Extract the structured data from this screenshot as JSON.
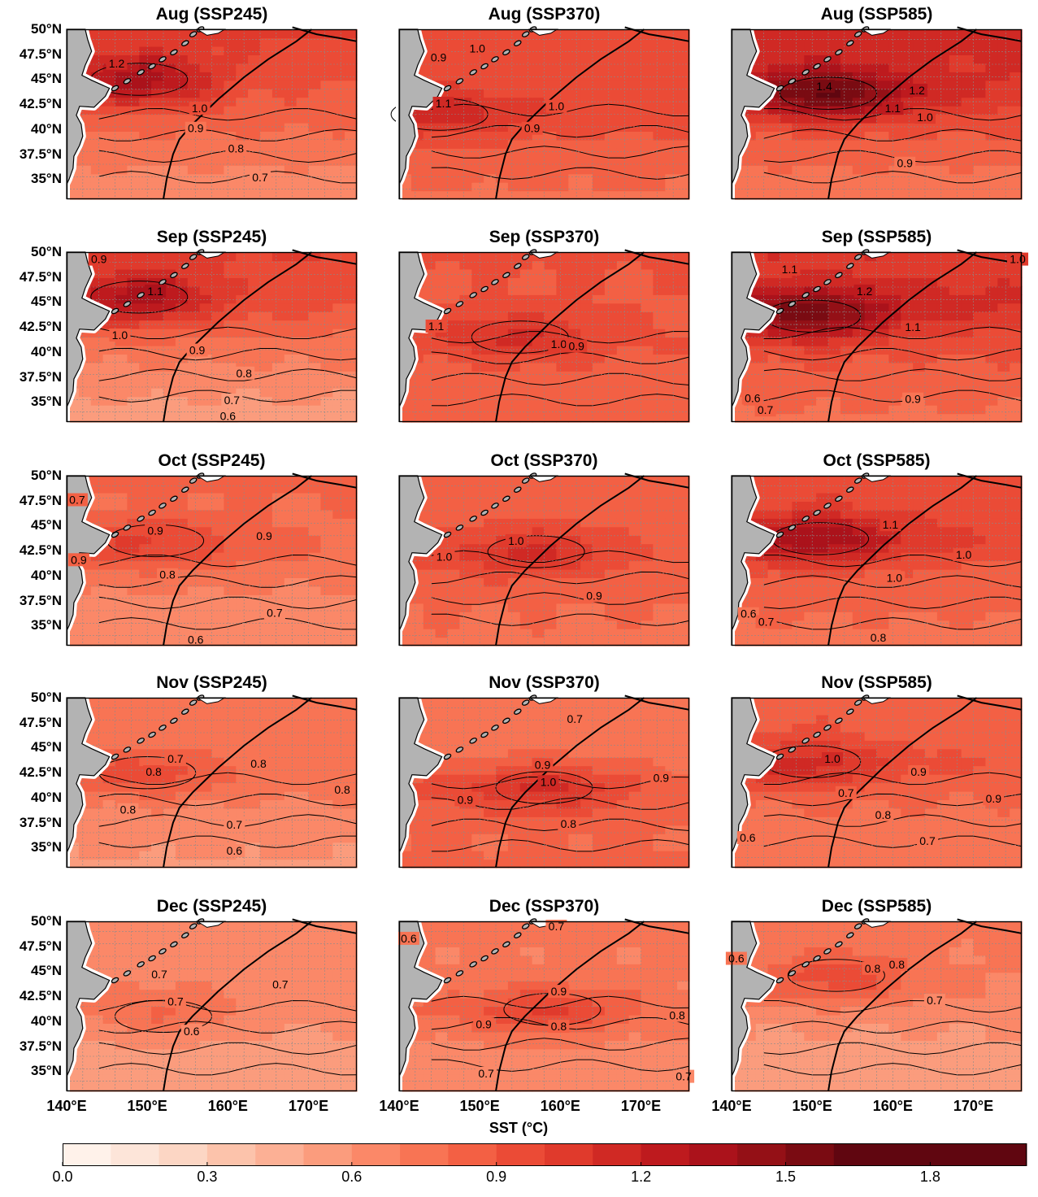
{
  "chart_data": {
    "type": "contour-map",
    "variable": "SST (°C)",
    "scenarios": [
      "SSP245",
      "SSP370",
      "SSP585"
    ],
    "months": [
      "Aug",
      "Sep",
      "Oct",
      "Nov",
      "Dec"
    ],
    "panel_titles": [
      [
        "Aug (SSP245)",
        "Aug (SSP370)",
        "Aug (SSP585)"
      ],
      [
        "Sep (SSP245)",
        "Sep (SSP370)",
        "Sep (SSP585)"
      ],
      [
        "Oct (SSP245)",
        "Oct (SSP370)",
        "Oct (SSP585)"
      ],
      [
        "Nov (SSP245)",
        "Nov (SSP370)",
        "Nov (SSP585)"
      ],
      [
        "Dec (SSP245)",
        "Dec (SSP370)",
        "Dec (SSP585)"
      ]
    ],
    "lon_range": [
      140,
      176
    ],
    "lat_range": [
      33,
      50
    ],
    "lat_ticks": [
      {
        "value": 50,
        "label": "50°N"
      },
      {
        "value": 47.5,
        "label": "47.5°N"
      },
      {
        "value": 45,
        "label": "45°N"
      },
      {
        "value": 42.5,
        "label": "42.5°N"
      },
      {
        "value": 40,
        "label": "40°N"
      },
      {
        "value": 37.5,
        "label": "37.5°N"
      },
      {
        "value": 35,
        "label": "35°N"
      }
    ],
    "lon_ticks": [
      {
        "value": 140,
        "label": "140°E"
      },
      {
        "value": 150,
        "label": "150°E"
      },
      {
        "value": 160,
        "label": "160°E"
      },
      {
        "value": 170,
        "label": "170°E"
      }
    ],
    "grid": true,
    "colorbar": {
      "label": "SST (°C)",
      "min": 0.0,
      "max": 2.0,
      "step": 0.1,
      "ticks": [
        {
          "value": 0.0,
          "label": "0.0"
        },
        {
          "value": 0.3,
          "label": "0.3"
        },
        {
          "value": 0.6,
          "label": "0.6"
        },
        {
          "value": 0.9,
          "label": "0.9"
        },
        {
          "value": 1.2,
          "label": "1.2"
        },
        {
          "value": 1.5,
          "label": "1.5"
        },
        {
          "value": 1.8,
          "label": "1.8"
        }
      ],
      "colors": [
        "#fff2ea",
        "#fde5d9",
        "#fcd6c4",
        "#fcc3ab",
        "#fcb095",
        "#fb9c7d",
        "#fb8868",
        "#f87454",
        "#f36044",
        "#eb4b36",
        "#e03a2c",
        "#d02924",
        "#be1a1e",
        "#ab121b",
        "#941016",
        "#7a0b12",
        "#600610"
      ]
    },
    "panels": [
      {
        "month": "Aug",
        "scenario": "SSP245",
        "field": {
          "base": 0.8,
          "north": 0.25,
          "core_value": 1.25,
          "core_lon": 149,
          "core_lat": 45,
          "tongue": 0.05,
          "tongue_lat": 42
        },
        "contour_labels": [
          {
            "text": "1.2",
            "lon": 146.2,
            "lat": 46.6
          },
          {
            "text": "1.0",
            "lon": 156.5,
            "lat": 42.1
          },
          {
            "text": "0.9",
            "lon": 156,
            "lat": 40.1
          },
          {
            "text": "0.8",
            "lon": 161,
            "lat": 38.1
          },
          {
            "text": "0.7",
            "lon": 164,
            "lat": 35.2
          }
        ]
      },
      {
        "month": "Aug",
        "scenario": "SSP370",
        "field": {
          "base": 0.88,
          "north": 0.12,
          "core_value": 1.05,
          "core_lon": 145,
          "core_lat": 41.5,
          "tongue": 0.12,
          "tongue_lat": 41.5
        },
        "contour_labels": [
          {
            "text": "0.9",
            "lon": 144.9,
            "lat": 47.2
          },
          {
            "text": "1.0",
            "lon": 149.7,
            "lat": 48.1
          },
          {
            "text": "1.0",
            "lon": 159.5,
            "lat": 42.3
          },
          {
            "text": "0.9",
            "lon": 156.5,
            "lat": 40.1
          },
          {
            "text": "1.1",
            "lon": 145.5,
            "lat": 42.6
          }
        ]
      },
      {
        "month": "Aug",
        "scenario": "SSP585",
        "field": {
          "base": 0.92,
          "north": 0.3,
          "core_value": 1.42,
          "core_lon": 152,
          "core_lat": 43.6,
          "tongue": 0.15,
          "tongue_lat": 43.5
        },
        "contour_labels": [
          {
            "text": "1.4",
            "lon": 151.5,
            "lat": 44.3
          },
          {
            "text": "1.2",
            "lon": 163,
            "lat": 43.9
          },
          {
            "text": "1.1",
            "lon": 160,
            "lat": 42.1
          },
          {
            "text": "1.0",
            "lon": 164,
            "lat": 41.2
          },
          {
            "text": "0.9",
            "lon": 161.5,
            "lat": 36.6
          }
        ]
      },
      {
        "month": "Sep",
        "scenario": "SSP245",
        "field": {
          "base": 0.75,
          "north": 0.3,
          "core_value": 1.15,
          "core_lon": 149,
          "core_lat": 45.5,
          "tongue": 0.1,
          "tongue_lat": 44
        },
        "contour_labels": [
          {
            "text": "0.9",
            "lon": 144,
            "lat": 49.3
          },
          {
            "text": "1.1",
            "lon": 151,
            "lat": 46.1
          },
          {
            "text": "1.0",
            "lon": 146.6,
            "lat": 41.7
          },
          {
            "text": "0.9",
            "lon": 156.2,
            "lat": 40.2
          },
          {
            "text": "0.8",
            "lon": 162,
            "lat": 37.9
          },
          {
            "text": "0.7",
            "lon": 160.5,
            "lat": 35.2
          },
          {
            "text": "0.6",
            "lon": 160,
            "lat": 33.6
          }
        ]
      },
      {
        "month": "Sep",
        "scenario": "SSP370",
        "field": {
          "base": 0.86,
          "north": 0.06,
          "core_value": 1.05,
          "core_lon": 155,
          "core_lat": 41.5,
          "tongue": 0.08,
          "tongue_lat": 41.5
        },
        "contour_labels": [
          {
            "text": "1.1",
            "lon": 144.6,
            "lat": 42.6
          },
          {
            "text": "1.0",
            "lon": 159.8,
            "lat": 40.8
          },
          {
            "text": "0.9",
            "lon": 162,
            "lat": 40.6
          }
        ]
      },
      {
        "month": "Sep",
        "scenario": "SSP585",
        "field": {
          "base": 0.92,
          "north": 0.2,
          "core_value": 1.32,
          "core_lon": 150,
          "core_lat": 43.6,
          "tongue": 0.22,
          "tongue_lat": 44.5
        },
        "contour_labels": [
          {
            "text": "1.1",
            "lon": 147.2,
            "lat": 48.3
          },
          {
            "text": "1.2",
            "lon": 156.5,
            "lat": 46.1
          },
          {
            "text": "1.0",
            "lon": 175.5,
            "lat": 49.3
          },
          {
            "text": "1.1",
            "lon": 162.5,
            "lat": 42.5
          },
          {
            "text": "0.9",
            "lon": 162.5,
            "lat": 35.3
          },
          {
            "text": "0.6",
            "lon": 142.6,
            "lat": 35.4
          },
          {
            "text": "0.7",
            "lon": 144.2,
            "lat": 34.2
          }
        ]
      },
      {
        "month": "Oct",
        "scenario": "SSP245",
        "field": {
          "base": 0.72,
          "north": 0.12,
          "core_value": 0.92,
          "core_lon": 151,
          "core_lat": 43.5,
          "tongue": 0.1,
          "tongue_lat": 42.5
        },
        "contour_labels": [
          {
            "text": "0.7",
            "lon": 141.3,
            "lat": 47.6
          },
          {
            "text": "0.9",
            "lon": 151,
            "lat": 44.5
          },
          {
            "text": "0.9",
            "lon": 164.5,
            "lat": 44
          },
          {
            "text": "0.8",
            "lon": 152.5,
            "lat": 40.1
          },
          {
            "text": "0.7",
            "lon": 165.8,
            "lat": 36.3
          },
          {
            "text": "0.6",
            "lon": 156,
            "lat": 33.6
          },
          {
            "text": "0.9",
            "lon": 141.5,
            "lat": 41.6
          }
        ]
      },
      {
        "month": "Oct",
        "scenario": "SSP370",
        "field": {
          "base": 0.82,
          "north": 0.06,
          "core_value": 1.05,
          "core_lon": 157,
          "core_lat": 42.4,
          "tongue": 0.1,
          "tongue_lat": 42
        },
        "contour_labels": [
          {
            "text": "1.0",
            "lon": 154.5,
            "lat": 43.5
          },
          {
            "text": "1.0",
            "lon": 145.6,
            "lat": 41.9
          },
          {
            "text": "0.9",
            "lon": 164.2,
            "lat": 38
          }
        ]
      },
      {
        "month": "Oct",
        "scenario": "SSP585",
        "field": {
          "base": 0.86,
          "north": 0.14,
          "core_value": 1.22,
          "core_lon": 151,
          "core_lat": 43.7,
          "tongue": 0.16,
          "tongue_lat": 43.5
        },
        "contour_labels": [
          {
            "text": "1.1",
            "lon": 159.7,
            "lat": 45.1
          },
          {
            "text": "1.0",
            "lon": 168.8,
            "lat": 42.1
          },
          {
            "text": "1.0",
            "lon": 160.2,
            "lat": 39.8
          },
          {
            "text": "0.8",
            "lon": 158.2,
            "lat": 33.8
          },
          {
            "text": "0.6",
            "lon": 142.1,
            "lat": 36.2
          },
          {
            "text": "0.7",
            "lon": 144.3,
            "lat": 35.4
          }
        ]
      },
      {
        "month": "Nov",
        "scenario": "SSP245",
        "field": {
          "base": 0.68,
          "north": 0.12,
          "core_value": 0.84,
          "core_lon": 150,
          "core_lat": 42.5,
          "tongue": 0.1,
          "tongue_lat": 42
        },
        "contour_labels": [
          {
            "text": "0.8",
            "lon": 150.8,
            "lat": 42.6
          },
          {
            "text": "0.7",
            "lon": 153.5,
            "lat": 43.9
          },
          {
            "text": "0.8",
            "lon": 163.8,
            "lat": 43.4
          },
          {
            "text": "0.8",
            "lon": 174.2,
            "lat": 40.8
          },
          {
            "text": "0.8",
            "lon": 147.6,
            "lat": 38.8
          },
          {
            "text": "0.7",
            "lon": 160.8,
            "lat": 37.3
          },
          {
            "text": "0.6",
            "lon": 160.8,
            "lat": 34.7
          }
        ]
      },
      {
        "month": "Nov",
        "scenario": "SSP370",
        "field": {
          "base": 0.78,
          "north": -0.06,
          "core_value": 1.02,
          "core_lon": 158,
          "core_lat": 41,
          "tongue": 0.14,
          "tongue_lat": 41
        },
        "contour_labels": [
          {
            "text": "0.7",
            "lon": 161.8,
            "lat": 47.9
          },
          {
            "text": "0.9",
            "lon": 157.8,
            "lat": 43.3
          },
          {
            "text": "1.0",
            "lon": 158.5,
            "lat": 41.6
          },
          {
            "text": "0.9",
            "lon": 172.5,
            "lat": 42
          },
          {
            "text": "0.9",
            "lon": 148.2,
            "lat": 39.8
          },
          {
            "text": "0.8",
            "lon": 161,
            "lat": 37.4
          }
        ]
      },
      {
        "month": "Nov",
        "scenario": "SSP585",
        "field": {
          "base": 0.8,
          "north": 0.1,
          "core_value": 1.02,
          "core_lon": 150,
          "core_lat": 43.6,
          "tongue": 0.12,
          "tongue_lat": 43
        },
        "contour_labels": [
          {
            "text": "1.0",
            "lon": 152.5,
            "lat": 43.9
          },
          {
            "text": "0.9",
            "lon": 163.2,
            "lat": 42.6
          },
          {
            "text": "0.7",
            "lon": 154.2,
            "lat": 40.5
          },
          {
            "text": "0.9",
            "lon": 172.5,
            "lat": 39.9
          },
          {
            "text": "0.8",
            "lon": 158.8,
            "lat": 38.3
          },
          {
            "text": "0.6",
            "lon": 142,
            "lat": 36
          },
          {
            "text": "0.7",
            "lon": 164.3,
            "lat": 35.7
          }
        ]
      },
      {
        "month": "Dec",
        "scenario": "SSP245",
        "field": {
          "base": 0.6,
          "north": 0.1,
          "core_value": 0.75,
          "core_lon": 152,
          "core_lat": 40.5,
          "tongue": 0.08,
          "tongue_lat": 42
        },
        "contour_labels": [
          {
            "text": "0.7",
            "lon": 151.5,
            "lat": 44.7
          },
          {
            "text": "0.7",
            "lon": 166.5,
            "lat": 43.7
          },
          {
            "text": "0.7",
            "lon": 153.5,
            "lat": 42
          },
          {
            "text": "0.6",
            "lon": 155.5,
            "lat": 39
          }
        ]
      },
      {
        "month": "Dec",
        "scenario": "SSP370",
        "field": {
          "base": 0.68,
          "north": 0.06,
          "core_value": 0.92,
          "core_lon": 159,
          "core_lat": 41.2,
          "tongue": 0.12,
          "tongue_lat": 41
        },
        "contour_labels": [
          {
            "text": "0.6",
            "lon": 141.2,
            "lat": 48.3
          },
          {
            "text": "0.7",
            "lon": 159.5,
            "lat": 49.5
          },
          {
            "text": "0.9",
            "lon": 159.8,
            "lat": 43
          },
          {
            "text": "0.9",
            "lon": 150.5,
            "lat": 39.7
          },
          {
            "text": "0.8",
            "lon": 159.8,
            "lat": 39.5
          },
          {
            "text": "0.8",
            "lon": 174.5,
            "lat": 40.6
          },
          {
            "text": "0.7",
            "lon": 150.8,
            "lat": 34.8
          },
          {
            "text": "0.7",
            "lon": 175.3,
            "lat": 34.5
          }
        ]
      },
      {
        "month": "Dec",
        "scenario": "SSP585",
        "field": {
          "base": 0.62,
          "north": 0.14,
          "core_value": 0.86,
          "core_lon": 153,
          "core_lat": 44.6,
          "tongue": 0.08,
          "tongue_lat": 43
        },
        "contour_labels": [
          {
            "text": "0.6",
            "lon": 140.6,
            "lat": 46.3
          },
          {
            "text": "0.8",
            "lon": 157.5,
            "lat": 45.3
          },
          {
            "text": "0.8",
            "lon": 160.5,
            "lat": 45.7
          },
          {
            "text": "0.7",
            "lon": 165.2,
            "lat": 42.1
          }
        ]
      }
    ]
  }
}
